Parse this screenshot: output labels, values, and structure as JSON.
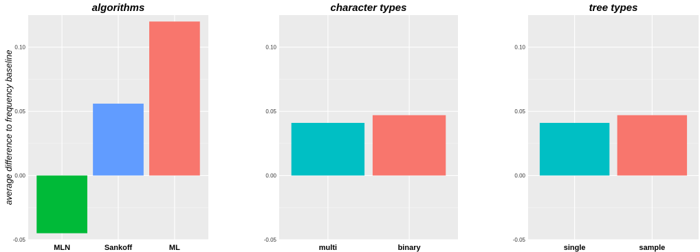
{
  "chart_data": [
    {
      "type": "bar",
      "title": "algorithms",
      "ylabel": "average difference to frequency baseline",
      "categories": [
        "MLN",
        "Sankoff",
        "ML"
      ],
      "values": [
        -0.045,
        0.056,
        0.12
      ],
      "colors": [
        "#00ba38",
        "#619cff",
        "#f8766d"
      ],
      "ylim": [
        -0.05,
        0.125
      ],
      "yticks": [
        -0.05,
        0.0,
        0.05,
        0.1
      ],
      "ytick_labels": [
        "-0.05",
        "0.00",
        "0.05",
        "0.10"
      ],
      "grid": true
    },
    {
      "type": "bar",
      "title": "character types",
      "ylabel": "",
      "categories": [
        "multi",
        "binary"
      ],
      "values": [
        0.041,
        0.047
      ],
      "colors": [
        "#00bfc4",
        "#f8766d"
      ],
      "ylim": [
        -0.05,
        0.125
      ],
      "yticks": [
        -0.05,
        0.0,
        0.05,
        0.1
      ],
      "ytick_labels": [
        "-0.05",
        "0.00",
        "0.05",
        "0.10"
      ],
      "grid": true
    },
    {
      "type": "bar",
      "title": "tree types",
      "ylabel": "",
      "categories": [
        "single",
        "sample"
      ],
      "values": [
        0.041,
        0.047
      ],
      "colors": [
        "#00bfc4",
        "#f8766d"
      ],
      "ylim": [
        -0.05,
        0.125
      ],
      "yticks": [
        -0.05,
        0.0,
        0.05,
        0.1
      ],
      "ytick_labels": [
        "-0.05",
        "0.00",
        "0.05",
        "0.10"
      ],
      "grid": true
    }
  ],
  "style": {
    "panel_background": "#ebebeb",
    "major_grid": "#ffffff",
    "page_background": "#ffffff"
  }
}
